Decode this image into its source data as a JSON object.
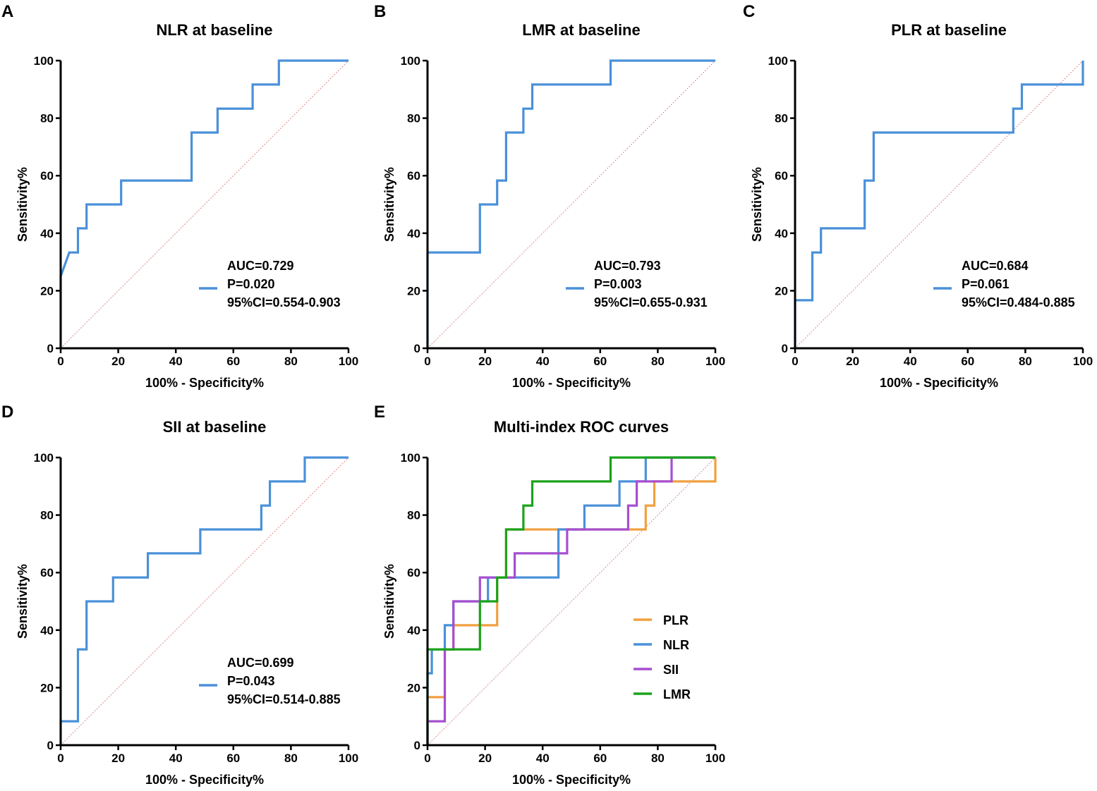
{
  "chart_data": [
    {
      "panel": "A",
      "type": "line",
      "title": "NLR at baseline",
      "xlabel": "100% - Specificity%",
      "ylabel": "Sensitivity%",
      "xlim": [
        0,
        100
      ],
      "ylim": [
        0,
        100
      ],
      "ticks": [
        "0",
        "20",
        "40",
        "60",
        "80",
        "100"
      ],
      "series": [
        {
          "name": "NLR",
          "color": "#4a90d9",
          "points": [
            [
              0,
              0
            ],
            [
              0,
              25
            ],
            [
              3,
              33.3
            ],
            [
              6,
              33.3
            ],
            [
              6,
              41.7
            ],
            [
              9,
              41.7
            ],
            [
              9,
              50
            ],
            [
              21,
              50
            ],
            [
              21,
              58.3
            ],
            [
              45.5,
              58.3
            ],
            [
              45.5,
              75
            ],
            [
              54.5,
              75
            ],
            [
              54.5,
              83.3
            ],
            [
              66.7,
              83.3
            ],
            [
              66.7,
              91.7
            ],
            [
              75.8,
              91.7
            ],
            [
              75.8,
              100
            ],
            [
              100,
              100
            ]
          ]
        }
      ],
      "legend": {
        "position": "bottom-right",
        "color": "#4a90d9",
        "lines": [
          "AUC=0.729",
          "P=0.020",
          "95%CI=0.554-0.903"
        ]
      }
    },
    {
      "panel": "B",
      "type": "line",
      "title": "LMR at baseline",
      "xlabel": "100% - Specificity%",
      "ylabel": "Sensitivity%",
      "xlim": [
        0,
        100
      ],
      "ylim": [
        0,
        100
      ],
      "ticks": [
        "0",
        "20",
        "40",
        "60",
        "80",
        "100"
      ],
      "series": [
        {
          "name": "LMR",
          "color": "#4a90d9",
          "points": [
            [
              0,
              0
            ],
            [
              0,
              33.3
            ],
            [
              18.2,
              33.3
            ],
            [
              18.2,
              50
            ],
            [
              24.2,
              50
            ],
            [
              24.2,
              58.3
            ],
            [
              27.3,
              58.3
            ],
            [
              27.3,
              75
            ],
            [
              33.3,
              75
            ],
            [
              33.3,
              83.3
            ],
            [
              36.4,
              83.3
            ],
            [
              36.4,
              91.7
            ],
            [
              63.6,
              91.7
            ],
            [
              63.6,
              100
            ],
            [
              100,
              100
            ]
          ]
        }
      ],
      "legend": {
        "position": "bottom-right",
        "color": "#4a90d9",
        "lines": [
          "AUC=0.793",
          "P=0.003",
          "95%CI=0.655-0.931"
        ]
      }
    },
    {
      "panel": "C",
      "type": "line",
      "title": "PLR at baseline",
      "xlabel": "100% - Specificity%",
      "ylabel": "Sensitivity%",
      "xlim": [
        0,
        100
      ],
      "ylim": [
        0,
        100
      ],
      "ticks": [
        "0",
        "20",
        "40",
        "60",
        "80",
        "100"
      ],
      "series": [
        {
          "name": "PLR",
          "color": "#4a90d9",
          "points": [
            [
              0,
              0
            ],
            [
              0,
              16.7
            ],
            [
              6,
              16.7
            ],
            [
              6,
              33.3
            ],
            [
              9,
              33.3
            ],
            [
              9,
              41.7
            ],
            [
              24.2,
              41.7
            ],
            [
              24.2,
              58.3
            ],
            [
              27.3,
              58.3
            ],
            [
              27.3,
              75
            ],
            [
              75.8,
              75
            ],
            [
              75.8,
              83.3
            ],
            [
              78.8,
              83.3
            ],
            [
              78.8,
              91.7
            ],
            [
              100,
              91.7
            ],
            [
              100,
              100
            ]
          ]
        }
      ],
      "legend": {
        "position": "bottom-right",
        "color": "#4a90d9",
        "lines": [
          "AUC=0.684",
          "P=0.061",
          "95%CI=0.484-0.885"
        ]
      }
    },
    {
      "panel": "D",
      "type": "line",
      "title": "SII at baseline",
      "xlabel": "100% - Specificity%",
      "ylabel": "Sensitivity%",
      "xlim": [
        0,
        100
      ],
      "ylim": [
        0,
        100
      ],
      "ticks": [
        "0",
        "20",
        "40",
        "60",
        "80",
        "100"
      ],
      "series": [
        {
          "name": "SII",
          "color": "#4a90d9",
          "points": [
            [
              0,
              0
            ],
            [
              0,
              8.3
            ],
            [
              6,
              8.3
            ],
            [
              6,
              33.3
            ],
            [
              9,
              33.3
            ],
            [
              9,
              50
            ],
            [
              18.2,
              50
            ],
            [
              18.2,
              58.3
            ],
            [
              30.3,
              58.3
            ],
            [
              30.3,
              66.7
            ],
            [
              48.5,
              66.7
            ],
            [
              48.5,
              75
            ],
            [
              69.7,
              75
            ],
            [
              69.7,
              83.3
            ],
            [
              72.7,
              83.3
            ],
            [
              72.7,
              91.7
            ],
            [
              84.8,
              91.7
            ],
            [
              84.8,
              100
            ],
            [
              100,
              100
            ]
          ]
        }
      ],
      "legend": {
        "position": "bottom-right",
        "color": "#4a90d9",
        "lines": [
          "AUC=0.699",
          "P=0.043",
          "95%CI=0.514-0.885"
        ]
      }
    },
    {
      "panel": "E",
      "type": "line",
      "title": "Multi-index ROC curves",
      "xlabel": "100% - Specificity%",
      "ylabel": "Sensitivity%",
      "xlim": [
        0,
        100
      ],
      "ylim": [
        0,
        100
      ],
      "ticks": [
        "0",
        "20",
        "40",
        "60",
        "80",
        "100"
      ],
      "series": [
        {
          "name": "PLR",
          "color": "#f0a040",
          "points": [
            [
              0,
              0
            ],
            [
              0,
              16.7
            ],
            [
              6,
              16.7
            ],
            [
              6,
              33.3
            ],
            [
              9,
              33.3
            ],
            [
              9,
              41.7
            ],
            [
              24.2,
              41.7
            ],
            [
              24.2,
              58.3
            ],
            [
              27.3,
              58.3
            ],
            [
              27.3,
              75
            ],
            [
              75.8,
              75
            ],
            [
              75.8,
              83.3
            ],
            [
              78.8,
              83.3
            ],
            [
              78.8,
              91.7
            ],
            [
              100,
              91.7
            ],
            [
              100,
              100
            ]
          ]
        },
        {
          "name": "NLR",
          "color": "#4a90d9",
          "points": [
            [
              0,
              0
            ],
            [
              0,
              25
            ],
            [
              1.5,
              25
            ],
            [
              1.5,
              33.3
            ],
            [
              6,
              33.3
            ],
            [
              6,
              41.7
            ],
            [
              9,
              41.7
            ],
            [
              9,
              50
            ],
            [
              21,
              50
            ],
            [
              21,
              58.3
            ],
            [
              45.5,
              58.3
            ],
            [
              45.5,
              75
            ],
            [
              54.5,
              75
            ],
            [
              54.5,
              83.3
            ],
            [
              66.7,
              83.3
            ],
            [
              66.7,
              91.7
            ],
            [
              75.8,
              91.7
            ],
            [
              75.8,
              100
            ],
            [
              100,
              100
            ]
          ]
        },
        {
          "name": "SII",
          "color": "#a64fd0",
          "points": [
            [
              0,
              0
            ],
            [
              0,
              8.3
            ],
            [
              6,
              8.3
            ],
            [
              6,
              33.3
            ],
            [
              9,
              33.3
            ],
            [
              9,
              50
            ],
            [
              18.2,
              50
            ],
            [
              18.2,
              58.3
            ],
            [
              30.3,
              58.3
            ],
            [
              30.3,
              66.7
            ],
            [
              48.5,
              66.7
            ],
            [
              48.5,
              75
            ],
            [
              69.7,
              75
            ],
            [
              69.7,
              83.3
            ],
            [
              72.7,
              83.3
            ],
            [
              72.7,
              91.7
            ],
            [
              84.8,
              91.7
            ],
            [
              84.8,
              100
            ],
            [
              100,
              100
            ]
          ]
        },
        {
          "name": "LMR",
          "color": "#1aa31a",
          "points": [
            [
              0,
              0
            ],
            [
              0,
              33.3
            ],
            [
              18.2,
              33.3
            ],
            [
              18.2,
              50
            ],
            [
              24.2,
              50
            ],
            [
              24.2,
              58.3
            ],
            [
              27.3,
              58.3
            ],
            [
              27.3,
              75
            ],
            [
              33.3,
              75
            ],
            [
              33.3,
              83.3
            ],
            [
              36.4,
              83.3
            ],
            [
              36.4,
              91.7
            ],
            [
              63.6,
              91.7
            ],
            [
              63.6,
              100
            ],
            [
              100,
              100
            ]
          ]
        }
      ],
      "legend": {
        "position": "bottom-right"
      }
    }
  ]
}
